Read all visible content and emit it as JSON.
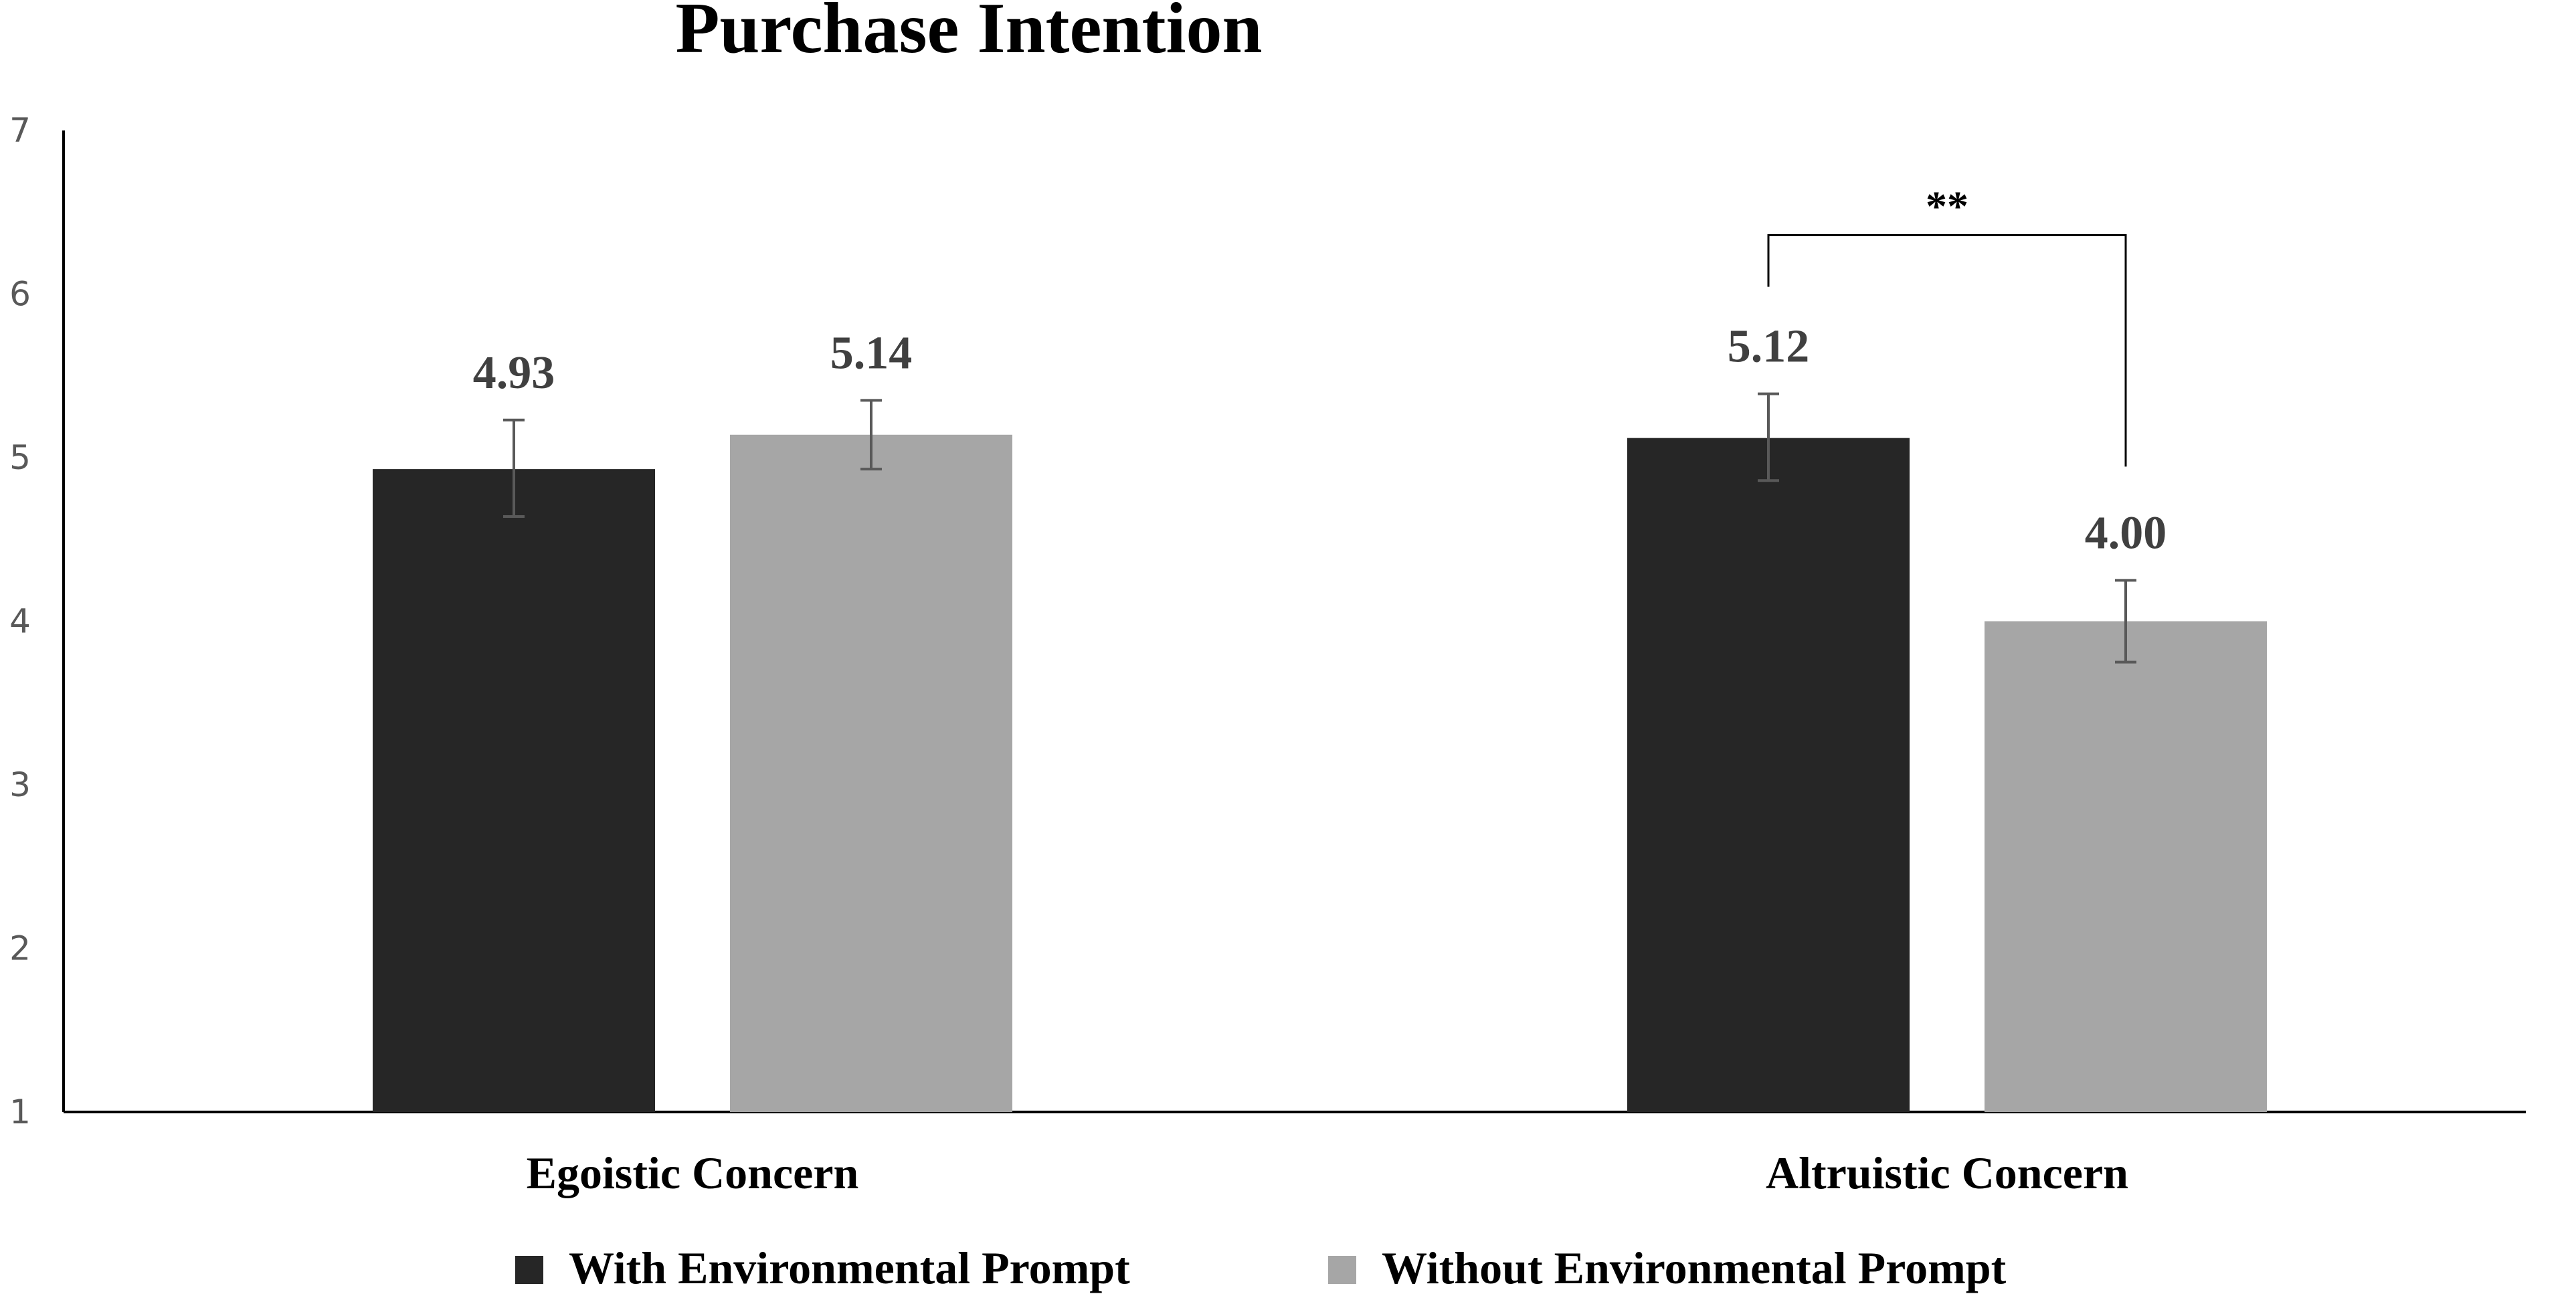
{
  "chart_data": {
    "type": "bar",
    "title": "Purchase Intention",
    "xlabel": "",
    "ylabel": "",
    "ylim": [
      1,
      7
    ],
    "yticks": [
      1,
      2,
      3,
      4,
      5,
      6,
      7
    ],
    "grid": false,
    "legend_position": "bottom",
    "categories": [
      "Egoistic Concern",
      "Altruistic Concern"
    ],
    "series": [
      {
        "name": "With Environmental Prompt",
        "color": "#262626",
        "values": [
          4.93,
          5.12
        ],
        "labels": [
          "4.93",
          "5.12"
        ],
        "error_low": [
          4.64,
          4.86
        ],
        "error_high": [
          5.23,
          5.39
        ]
      },
      {
        "name": "Without Environmental Prompt",
        "color": "#a6a6a6",
        "values": [
          5.14,
          4.0
        ],
        "labels": [
          "5.14",
          "4.00"
        ],
        "error_low": [
          4.93,
          3.75
        ],
        "error_high": [
          5.35,
          4.25
        ]
      }
    ],
    "annotations": [
      {
        "text": "**",
        "category": "Altruistic Concern",
        "bracket_top": 6.36
      }
    ]
  }
}
